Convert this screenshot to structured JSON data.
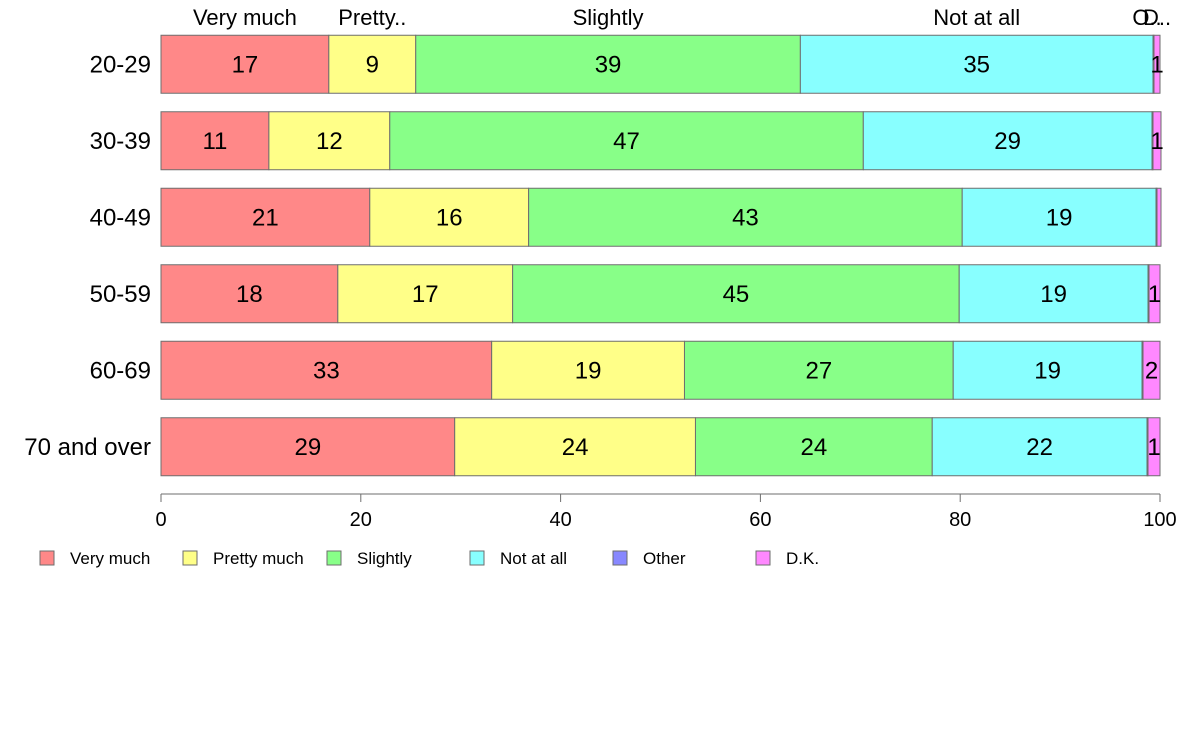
{
  "chart_data": {
    "type": "bar",
    "orientation": "horizontal",
    "stacked": true,
    "categories": [
      "20-29",
      "30-39",
      "40-49",
      "50-59",
      "60-69",
      "70 and over"
    ],
    "series": [
      {
        "name": "Very much",
        "color": "#ff8888",
        "values": [
          16.8,
          10.8,
          20.9,
          17.7,
          33.1,
          29.4
        ]
      },
      {
        "name": "Pretty much",
        "color": "#ffff88",
        "values": [
          8.7,
          12.1,
          15.9,
          17.5,
          19.3,
          24.1
        ]
      },
      {
        "name": "Slightly",
        "color": "#88ff88",
        "values": [
          38.5,
          47.4,
          43.4,
          44.7,
          26.9,
          23.7
        ]
      },
      {
        "name": "Not at all",
        "color": "#88ffff",
        "values": [
          35.3,
          28.9,
          19.4,
          18.9,
          18.9,
          21.5
        ]
      },
      {
        "name": "Other",
        "color": "#8888ff",
        "values": [
          0.1,
          0.1,
          0.1,
          0.1,
          0.1,
          0.1
        ]
      },
      {
        "name": "D.K.",
        "color": "#ff88ff",
        "values": [
          0.6,
          0.8,
          0.4,
          1.1,
          1.7,
          1.2
        ]
      }
    ],
    "segment_labels": [
      [
        "17",
        "9",
        "39",
        "35",
        "",
        "1"
      ],
      [
        "11",
        "12",
        "47",
        "29",
        "",
        "1"
      ],
      [
        "21",
        "16",
        "43",
        "19",
        "",
        ""
      ],
      [
        "18",
        "17",
        "45",
        "19",
        "",
        "1"
      ],
      [
        "33",
        "19",
        "27",
        "19",
        "",
        "2"
      ],
      [
        "29",
        "24",
        "24",
        "22",
        "",
        "1"
      ]
    ],
    "top_labels": [
      "Very much",
      "Pretty..",
      "Slightly",
      "Not at all",
      "O..",
      "D.."
    ],
    "xlim": [
      0,
      100
    ],
    "xticks": [
      "0",
      "20",
      "40",
      "60",
      "80",
      "100"
    ],
    "legend": {
      "position": "bottom",
      "labels": [
        "Very much",
        "Pretty much",
        "Slightly",
        "Not at all",
        "Other",
        "D.K."
      ]
    },
    "grid": false,
    "border_color": "#6e6e6e"
  }
}
